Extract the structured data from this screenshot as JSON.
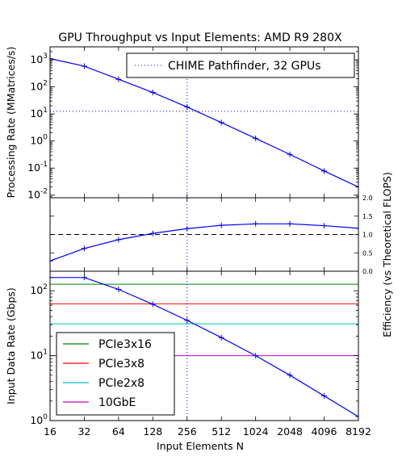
{
  "chart_data": {
    "type": "line",
    "title": "GPU Throughput vs Input Elements: AMD R9 280X",
    "xlabel": "Input Elements N",
    "x": [
      16,
      32,
      64,
      128,
      256,
      512,
      1024,
      2048,
      4096,
      8192
    ],
    "x_tick_labels": [
      "16",
      "32",
      "64",
      "128",
      "256",
      "512",
      "1024",
      "2048",
      "4096",
      "8192"
    ],
    "x_scale": "log2",
    "xlim": [
      16,
      8192
    ],
    "vline_x": 256,
    "colors": {
      "main": "#0000ff",
      "reference": "#000000",
      "pcie3x16": "#008000",
      "pcie3x8": "#ff0000",
      "pcie2x8": "#00bfbf",
      "gbe10": "#bf00bf"
    },
    "panels": [
      {
        "id": "processing",
        "ylabel": "Processing Rate (MMatrices/s)",
        "y_scale": "log10",
        "ylim": [
          0.008,
          3000
        ],
        "y_ticks": [
          {
            "value": 0.01,
            "base": "10",
            "exp": "-2"
          },
          {
            "value": 0.1,
            "base": "10",
            "exp": "-1"
          },
          {
            "value": 1,
            "base": "10",
            "exp": "0"
          },
          {
            "value": 10,
            "base": "10",
            "exp": "1"
          },
          {
            "value": 100,
            "base": "10",
            "exp": "2"
          },
          {
            "value": 1000,
            "base": "10",
            "exp": "3"
          }
        ],
        "series": [
          {
            "values": [
              1100,
              580,
              190,
              62,
              18,
              4.8,
              1.25,
              0.32,
              0.078,
              0.02
            ]
          }
        ],
        "hline": 12.5,
        "legend": {
          "placement": "top-right",
          "entries": [
            "CHIME Pathfinder, 32 GPUs"
          ]
        }
      },
      {
        "id": "efficiency",
        "ylabel": "Efficiency (vs Theoretical FLOPS)",
        "y_scale": "linear",
        "ylim": [
          0,
          2.0
        ],
        "y_ticks": [
          0.0,
          0.5,
          1.0,
          1.5,
          2.0
        ],
        "y_tick_labels": [
          "0.0",
          "0.5",
          "1.0",
          "1.5",
          "2.0"
        ],
        "series": [
          {
            "values": [
              0.28,
              0.62,
              0.86,
              1.03,
              1.16,
              1.25,
              1.29,
              1.29,
              1.24,
              1.17
            ]
          }
        ],
        "hline": 1.0
      },
      {
        "id": "datarate",
        "ylabel": "Input Data Rate (Gbps)",
        "y_scale": "log10",
        "ylim": [
          1,
          200
        ],
        "y_ticks": [
          {
            "value": 1,
            "base": "10",
            "exp": "0"
          },
          {
            "value": 10,
            "base": "10",
            "exp": "1"
          },
          {
            "value": 100,
            "base": "10",
            "exp": "2"
          }
        ],
        "series": [
          {
            "values": [
              160,
              160,
              105,
              62,
              35,
              19,
              10,
              5,
              2.4,
              1.15
            ]
          }
        ],
        "hlines": [
          {
            "name": "PCIe3x16",
            "value": 126,
            "color_key": "pcie3x16"
          },
          {
            "name": "PCIe3x8",
            "value": 63,
            "color_key": "pcie3x8"
          },
          {
            "name": "PCIe2x8",
            "value": 31,
            "color_key": "pcie2x8"
          },
          {
            "name": "10GbE",
            "value": 10,
            "color_key": "gbe10"
          }
        ],
        "legend": {
          "placement": "bottom-left",
          "entries": [
            "PCIe3x16",
            "PCIe3x8",
            "PCIe2x8",
            "10GbE"
          ]
        }
      }
    ]
  }
}
